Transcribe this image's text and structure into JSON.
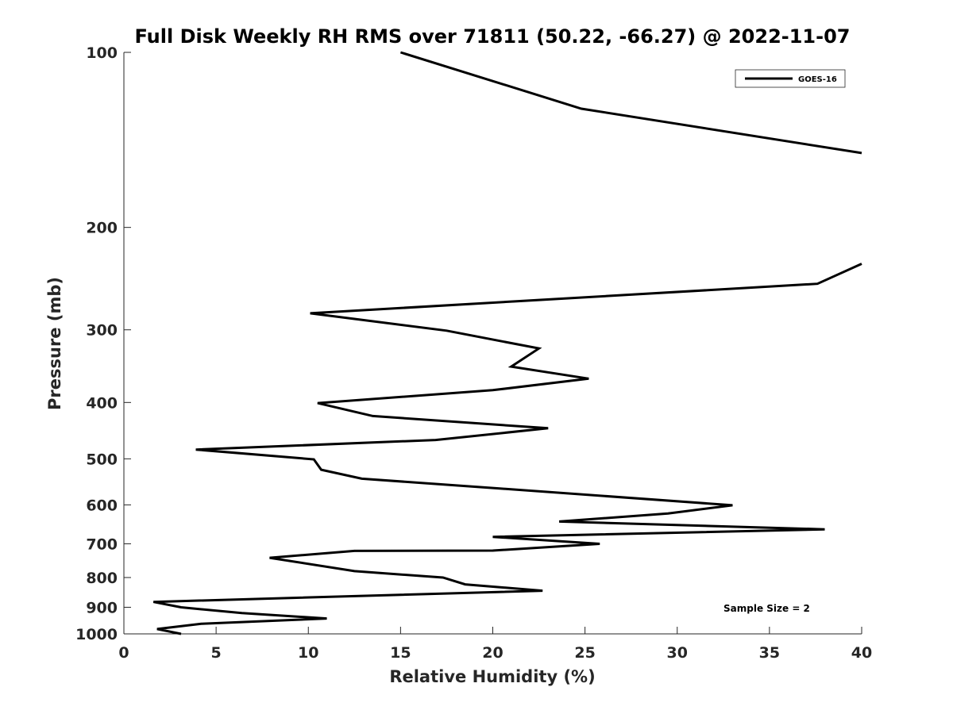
{
  "chart_data": {
    "type": "line",
    "title": "Full Disk Weekly RH RMS over 71811 (50.22, -66.27) @ 2022-11-07",
    "xlabel": "Relative Humidity (%)",
    "ylabel": "Pressure (mb)",
    "xlim": [
      0,
      40
    ],
    "ylim": [
      100,
      1000
    ],
    "y_scale": "log",
    "y_reversed": true,
    "x_ticks": [
      0,
      5,
      10,
      15,
      20,
      25,
      30,
      35,
      40
    ],
    "y_ticks": [
      100,
      200,
      300,
      400,
      500,
      600,
      700,
      800,
      900,
      1000
    ],
    "grid": false,
    "legend_position": "top-right",
    "annotation": "Sample Size = 2",
    "series": [
      {
        "name": "GOES-16",
        "color": "#000000",
        "segments": [
          [
            [
              15.0,
              100
            ],
            [
              24.8,
              125
            ],
            [
              40.0,
              149
            ]
          ],
          [
            [
              40.0,
              231
            ],
            [
              37.6,
              250
            ],
            [
              10.1,
              281
            ],
            [
              17.5,
              301
            ],
            [
              22.5,
              323
            ],
            [
              21.0,
              347
            ],
            [
              25.2,
              364
            ],
            [
              20.0,
              381
            ],
            [
              10.5,
              401
            ],
            [
              13.5,
              422
            ],
            [
              23.0,
              443
            ],
            [
              16.9,
              464
            ],
            [
              3.9,
              482
            ],
            [
              10.3,
              501
            ],
            [
              10.7,
              522
            ],
            [
              12.9,
              541
            ],
            [
              20.3,
              562
            ],
            [
              33.0,
              601
            ],
            [
              29.5,
              621
            ],
            [
              23.6,
              641
            ],
            [
              38.0,
              661
            ],
            [
              20.0,
              681
            ],
            [
              25.8,
              700
            ],
            [
              20.0,
              719
            ],
            [
              12.5,
              720
            ],
            [
              7.9,
              740
            ],
            [
              12.5,
              780
            ],
            [
              17.3,
              800
            ],
            [
              18.5,
              822
            ],
            [
              22.7,
              843
            ],
            [
              1.6,
              881
            ],
            [
              3.1,
              900
            ],
            [
              6.4,
              921
            ],
            [
              11.0,
              941
            ],
            [
              4.2,
              961
            ],
            [
              1.8,
              981
            ],
            [
              3.1,
              1000
            ]
          ]
        ]
      }
    ]
  }
}
